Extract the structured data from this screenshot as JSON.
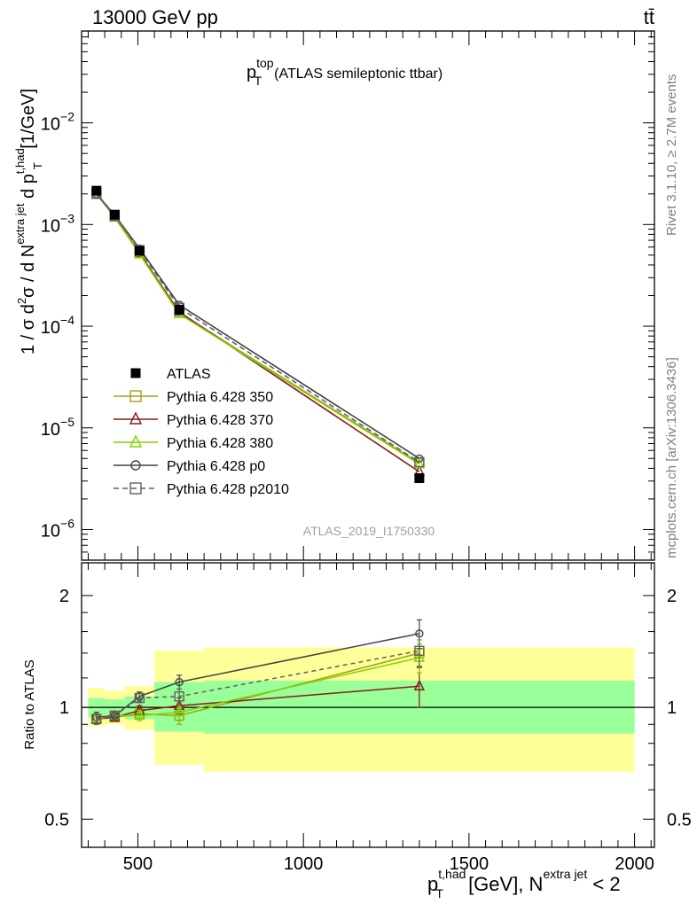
{
  "header": {
    "energy_label": "13000 GeV pp",
    "process_label": "tt̄"
  },
  "side_labels": {
    "rivet": "Rivet 3.1.10, ≥ 2.7M events",
    "mcplots": "mcplots.cern.ch [arXiv:1306.3436]"
  },
  "analysis_label": "ATLAS_2019_I1750330",
  "colors": {
    "data": "#000000",
    "p350": "#a0a020",
    "p370": "#8b1a1a",
    "p380": "#7fd400",
    "p0": "#444444",
    "p2010": "#606060",
    "band_inner": "#99ff99",
    "band_outer": "#ffff99"
  },
  "chart_data": [
    {
      "type": "line",
      "panel": "main",
      "title_main": "p",
      "title_sup": "top",
      "title_sub": "T",
      "title_rest": "(ATLAS semileptonic ttbar)",
      "ylabel": {
        "pre": "1 / σ d",
        "sup1": "2",
        "mid1": "σ /  d N",
        "sup2": "extra jet",
        "mid2": " d p",
        "sup3": "t,had",
        "sub3": "T",
        "post": " [1/GeV]"
      },
      "yscale": "log",
      "ylim": [
        5e-07,
        0.08
      ],
      "xlim": [
        330,
        2060
      ],
      "ytick_labels": [
        {
          "value": 1e-06,
          "base": "10",
          "exp": "−6"
        },
        {
          "value": 1e-05,
          "base": "10",
          "exp": "−5"
        },
        {
          "value": 0.0001,
          "base": "10",
          "exp": "−4"
        },
        {
          "value": 0.001,
          "base": "10",
          "exp": "−3"
        },
        {
          "value": 0.01,
          "base": "10",
          "exp": "−2"
        }
      ],
      "legend_position": "lower-left",
      "data": {
        "name": "ATLAS",
        "x": [
          375,
          430,
          505,
          625,
          1350
        ],
        "y": [
          0.00215,
          0.00125,
          0.00055,
          0.000145,
          3.2e-06
        ]
      },
      "series": [
        {
          "name": "Pythia 6.428 350",
          "key": "p350",
          "marker": "square",
          "dash": "",
          "x": [
            375,
            430,
            505,
            625,
            1350
          ],
          "y": [
            0.002,
            0.00122,
            0.00053,
            0.000135,
            4.5e-06
          ]
        },
        {
          "name": "Pythia 6.428 370",
          "key": "p370",
          "marker": "triangle",
          "dash": "",
          "x": [
            375,
            430,
            505,
            625,
            1350
          ],
          "y": [
            0.002,
            0.00118,
            0.00052,
            0.000138,
            3.7e-06
          ]
        },
        {
          "name": "Pythia 6.428 380",
          "key": "p380",
          "marker": "triangle",
          "dash": "",
          "x": [
            375,
            430,
            505,
            625,
            1350
          ],
          "y": [
            0.002,
            0.0012,
            0.00051,
            0.000132,
            4.4e-06
          ]
        },
        {
          "name": "Pythia 6.428 p0",
          "key": "p0",
          "marker": "circle",
          "dash": "",
          "x": [
            375,
            430,
            505,
            625,
            1350
          ],
          "y": [
            0.002,
            0.00124,
            0.00058,
            0.000162,
            5e-06
          ]
        },
        {
          "name": "Pythia 6.428 p2010",
          "key": "p2010",
          "marker": "square",
          "dash": "6,4",
          "x": [
            375,
            430,
            505,
            625,
            1350
          ],
          "y": [
            0.002,
            0.00123,
            0.00056,
            0.000152,
            4.6e-06
          ]
        }
      ]
    },
    {
      "type": "line",
      "panel": "ratio",
      "ylabel": "Ratio to ATLAS",
      "yscale": "log",
      "ylim": [
        0.42,
        2.45
      ],
      "xlim": [
        330,
        2060
      ],
      "ytick_labels": [
        {
          "value": 0.5,
          "label": "0.5"
        },
        {
          "value": 1,
          "label": "1"
        },
        {
          "value": 2,
          "label": "2"
        }
      ],
      "xtick_labels": [
        {
          "value": 500,
          "label": "500"
        },
        {
          "value": 1000,
          "label": "1000"
        },
        {
          "value": 1500,
          "label": "1500"
        },
        {
          "value": 2000,
          "label": "2000"
        }
      ],
      "xlabel": {
        "main": "p",
        "sup": "t,had",
        "sub": "T",
        "mid": " [GeV], N",
        "sup2": "extra jet",
        "post": " < 2"
      },
      "bands": [
        {
          "x0": 350,
          "x1": 400,
          "inner": [
            0.94,
            1.06
          ],
          "outer": [
            0.89,
            1.13
          ]
        },
        {
          "x0": 400,
          "x1": 460,
          "inner": [
            0.95,
            1.05
          ],
          "outer": [
            0.9,
            1.11
          ]
        },
        {
          "x0": 460,
          "x1": 550,
          "inner": [
            0.93,
            1.07
          ],
          "outer": [
            0.87,
            1.14
          ]
        },
        {
          "x0": 550,
          "x1": 700,
          "inner": [
            0.86,
            1.17
          ],
          "outer": [
            0.7,
            1.42
          ]
        },
        {
          "x0": 700,
          "x1": 2000,
          "inner": [
            0.85,
            1.18
          ],
          "outer": [
            0.67,
            1.45
          ]
        }
      ],
      "series": [
        {
          "key": "p350",
          "marker": "square",
          "dash": "",
          "x": [
            375,
            430,
            505,
            625,
            1350
          ],
          "y": [
            0.93,
            0.94,
            0.96,
            0.95,
            1.4
          ],
          "err": [
            0.03,
            0.02,
            0.03,
            0.05,
            0.12
          ]
        },
        {
          "key": "p370",
          "marker": "triangle",
          "dash": "",
          "x": [
            375,
            430,
            505,
            625,
            1350
          ],
          "y": [
            0.93,
            0.94,
            0.98,
            1.01,
            1.14
          ],
          "err": [
            0.03,
            0.02,
            0.03,
            0.05,
            0.14
          ]
        },
        {
          "key": "p380",
          "marker": "triangle",
          "dash": "",
          "x": [
            375,
            430,
            505,
            625,
            1350
          ],
          "y": [
            0.93,
            0.95,
            0.95,
            0.97,
            1.36
          ],
          "err": [
            0.03,
            0.02,
            0.03,
            0.05,
            0.12
          ]
        },
        {
          "key": "p0",
          "marker": "circle",
          "dash": "",
          "x": [
            375,
            430,
            505,
            625,
            1350
          ],
          "y": [
            0.94,
            0.95,
            1.07,
            1.17,
            1.58
          ],
          "err": [
            0.03,
            0.02,
            0.03,
            0.05,
            0.14
          ]
        },
        {
          "key": "p2010",
          "marker": "square",
          "dash": "5,4",
          "x": [
            375,
            430,
            505,
            625,
            1350
          ],
          "y": [
            0.93,
            0.95,
            1.06,
            1.07,
            1.42
          ],
          "err": [
            0.03,
            0.02,
            0.03,
            0.05,
            0.13
          ]
        }
      ]
    }
  ]
}
